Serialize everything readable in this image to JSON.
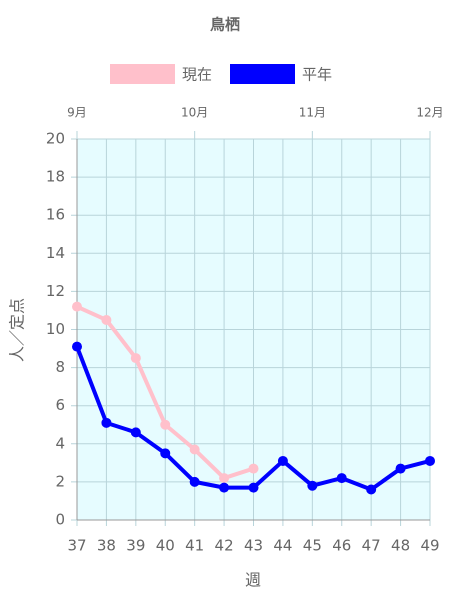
{
  "chart_data": {
    "type": "line",
    "title": "鳥栖",
    "x": [
      37,
      38,
      39,
      40,
      41,
      42,
      43,
      44,
      45,
      46,
      47,
      48,
      49
    ],
    "series": [
      {
        "name": "現在",
        "color": "#ffc0cb",
        "values": [
          11.2,
          10.5,
          8.5,
          5.0,
          3.7,
          2.2,
          2.7,
          null,
          null,
          null,
          null,
          null,
          null
        ]
      },
      {
        "name": "平年",
        "color": "#0000ff",
        "values": [
          9.1,
          5.1,
          4.6,
          3.5,
          2.0,
          1.7,
          1.7,
          3.1,
          1.8,
          2.2,
          1.6,
          2.7,
          3.1
        ]
      }
    ],
    "xlim": [
      37,
      49
    ],
    "xticks": [
      37,
      38,
      39,
      40,
      41,
      42,
      43,
      44,
      45,
      46,
      47,
      48,
      49
    ],
    "x2ticks": [
      {
        "value": 37,
        "label": "9月"
      },
      {
        "value": 41,
        "label": "10月"
      },
      {
        "value": 45,
        "label": "11月"
      },
      {
        "value": 49,
        "label": "12月"
      }
    ],
    "ylim": [
      0,
      20
    ],
    "yticks": [
      0,
      2,
      4,
      6,
      8,
      10,
      12,
      14,
      16,
      18,
      20
    ],
    "xlabel": "週",
    "ylabel": "人／定点",
    "grid": true,
    "legend": "top"
  }
}
